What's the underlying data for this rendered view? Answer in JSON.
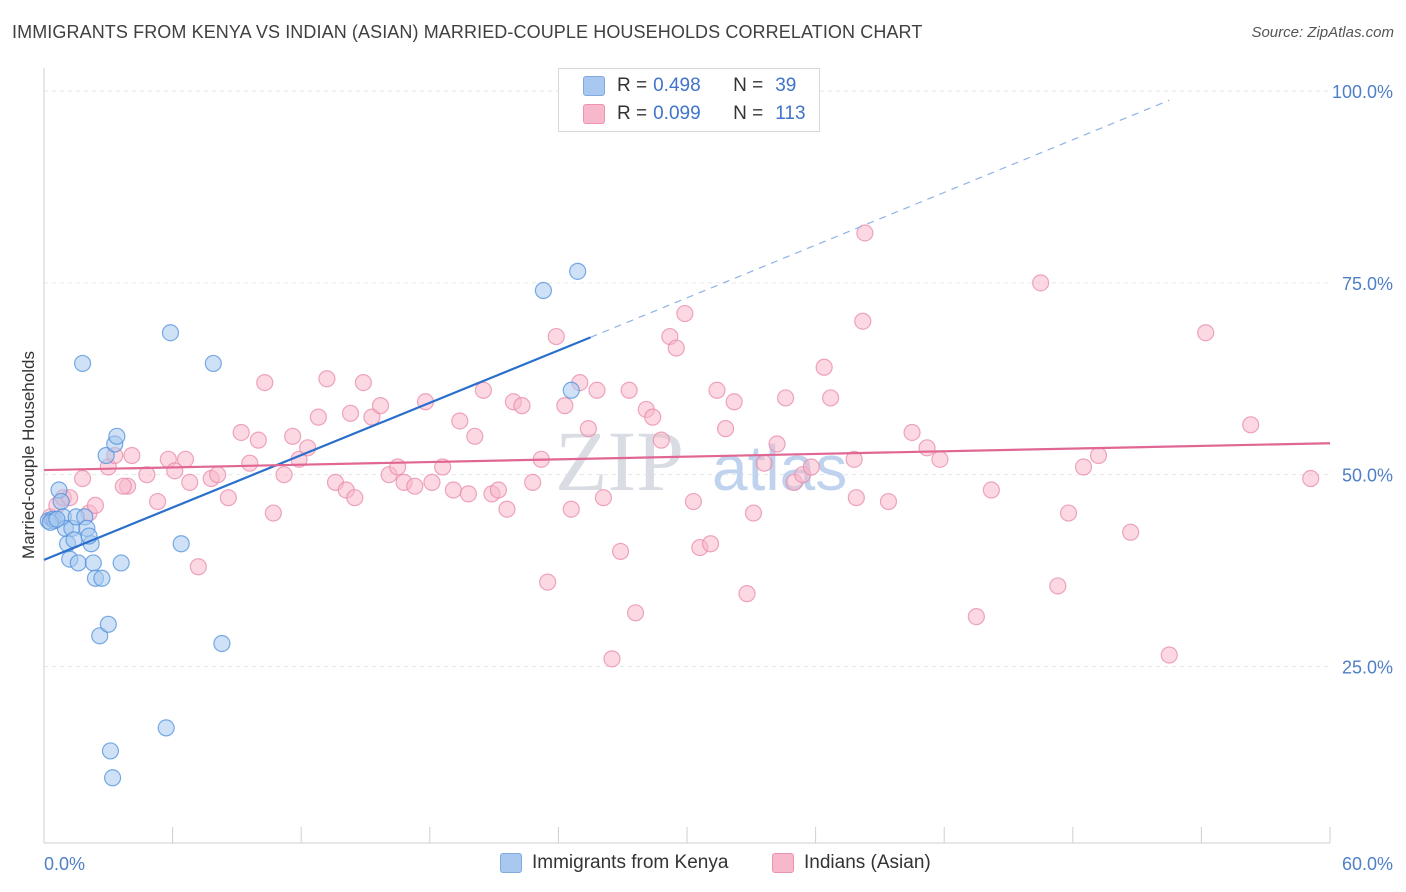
{
  "title": "IMMIGRANTS FROM KENYA VS INDIAN (ASIAN) MARRIED-COUPLE HOUSEHOLDS CORRELATION CHART",
  "source": "Source: ZipAtlas.com",
  "watermark": {
    "zip": "ZIP",
    "atlas": "atlas"
  },
  "legend": {
    "r_label": "R =",
    "n_label": "N =",
    "rows": [
      {
        "r": "0.498",
        "n": "39",
        "color": "#a8c8ef"
      },
      {
        "r": "0.099",
        "n": "113",
        "color": "#f7b8cb"
      }
    ]
  },
  "bottom_legend": [
    {
      "label": "Immigrants from Kenya",
      "color": "#a8c8ef"
    },
    {
      "label": "Indians (Asian)",
      "color": "#f7b8cb"
    }
  ],
  "chart_data": {
    "type": "scatter",
    "title": "IMMIGRANTS FROM KENYA VS INDIAN (ASIAN) MARRIED-COUPLE HOUSEHOLDS CORRELATION CHART",
    "xlabel": "",
    "ylabel": "Married-couple Households",
    "xlim": [
      0,
      60
    ],
    "ylim": [
      2,
      103
    ],
    "x_tick_labels": [
      "0.0%",
      "60.0%"
    ],
    "y_ticks": [
      25,
      50,
      75,
      100
    ],
    "y_tick_labels": [
      "25.0%",
      "50.0%",
      "75.0%",
      "100.0%"
    ],
    "grid": true,
    "series": [
      {
        "name": "Immigrants from Kenya",
        "color": "#4f8fdb",
        "fill": "#a8c8ef",
        "trend": {
          "x0": 0,
          "y0": 38.9,
          "x1": 25.5,
          "y1": 67.9,
          "dash_to_x": 52.5,
          "dash_to_y": 98.8,
          "color": "#2b6fcc"
        },
        "points": [
          [
            0.2,
            44.0
          ],
          [
            0.4,
            44.2
          ],
          [
            0.5,
            44.0
          ],
          [
            0.7,
            48.0
          ],
          [
            0.8,
            46.5
          ],
          [
            0.9,
            44.5
          ],
          [
            1.0,
            43.0
          ],
          [
            1.1,
            41.0
          ],
          [
            1.2,
            39.0
          ],
          [
            1.3,
            43.0
          ],
          [
            1.5,
            44.5
          ],
          [
            1.6,
            38.5
          ],
          [
            1.8,
            64.5
          ],
          [
            1.9,
            44.5
          ],
          [
            2.0,
            43.0
          ],
          [
            2.2,
            41.0
          ],
          [
            2.3,
            38.5
          ],
          [
            2.4,
            36.5
          ],
          [
            2.6,
            29.0
          ],
          [
            2.7,
            36.5
          ],
          [
            2.9,
            52.5
          ],
          [
            3.0,
            30.5
          ],
          [
            3.1,
            14.0
          ],
          [
            3.3,
            54.0
          ],
          [
            3.4,
            55.0
          ],
          [
            3.6,
            38.5
          ],
          [
            2.1,
            42.0
          ],
          [
            3.2,
            10.5
          ],
          [
            5.7,
            17.0
          ],
          [
            5.9,
            68.5
          ],
          [
            6.4,
            41.0
          ],
          [
            7.9,
            64.5
          ],
          [
            8.3,
            28.0
          ],
          [
            23.3,
            74.0
          ],
          [
            24.6,
            61.0
          ],
          [
            24.9,
            76.5
          ],
          [
            0.3,
            43.8
          ],
          [
            0.6,
            44.2
          ],
          [
            1.4,
            41.5
          ]
        ]
      },
      {
        "name": "Indians (Asian)",
        "color": "#e889a9",
        "fill": "#f7b8cb",
        "trend": {
          "x0": 0,
          "y0": 50.6,
          "x1": 60,
          "y1": 54.1,
          "color": "#e06693"
        },
        "points": [
          [
            0.3,
            44.5
          ],
          [
            0.6,
            46.0
          ],
          [
            0.9,
            47.0
          ],
          [
            1.8,
            49.5
          ],
          [
            2.1,
            45.0
          ],
          [
            2.4,
            46.0
          ],
          [
            3.0,
            51.0
          ],
          [
            3.3,
            52.5
          ],
          [
            3.9,
            48.5
          ],
          [
            4.1,
            52.5
          ],
          [
            4.8,
            50.0
          ],
          [
            5.3,
            46.5
          ],
          [
            5.8,
            52.0
          ],
          [
            6.1,
            50.5
          ],
          [
            6.6,
            52.0
          ],
          [
            6.8,
            49.0
          ],
          [
            7.2,
            38.0
          ],
          [
            7.8,
            49.5
          ],
          [
            8.1,
            50.0
          ],
          [
            8.6,
            47.0
          ],
          [
            9.2,
            55.5
          ],
          [
            10.0,
            54.5
          ],
          [
            10.3,
            62.0
          ],
          [
            10.7,
            45.0
          ],
          [
            11.2,
            50.0
          ],
          [
            11.6,
            55.0
          ],
          [
            11.9,
            52.0
          ],
          [
            12.3,
            53.5
          ],
          [
            12.8,
            57.5
          ],
          [
            13.2,
            62.5
          ],
          [
            13.6,
            49.0
          ],
          [
            14.1,
            48.0
          ],
          [
            14.5,
            47.0
          ],
          [
            14.9,
            62.0
          ],
          [
            15.3,
            57.5
          ],
          [
            15.7,
            59.0
          ],
          [
            16.1,
            50.0
          ],
          [
            16.5,
            51.0
          ],
          [
            16.8,
            49.0
          ],
          [
            17.3,
            48.5
          ],
          [
            17.8,
            59.5
          ],
          [
            18.1,
            49.0
          ],
          [
            18.6,
            51.0
          ],
          [
            19.1,
            48.0
          ],
          [
            19.4,
            57.0
          ],
          [
            19.8,
            47.5
          ],
          [
            20.1,
            55.0
          ],
          [
            20.5,
            61.0
          ],
          [
            20.9,
            47.5
          ],
          [
            21.2,
            48.0
          ],
          [
            21.6,
            45.5
          ],
          [
            21.9,
            59.5
          ],
          [
            22.3,
            59.0
          ],
          [
            22.8,
            49.0
          ],
          [
            23.2,
            52.0
          ],
          [
            23.5,
            36.0
          ],
          [
            23.9,
            68.0
          ],
          [
            24.3,
            59.0
          ],
          [
            24.6,
            45.5
          ],
          [
            25.0,
            62.0
          ],
          [
            25.4,
            56.0
          ],
          [
            25.8,
            61.0
          ],
          [
            26.1,
            47.0
          ],
          [
            26.5,
            26.0
          ],
          [
            26.9,
            40.0
          ],
          [
            27.3,
            61.0
          ],
          [
            27.6,
            32.0
          ],
          [
            28.1,
            58.5
          ],
          [
            28.4,
            57.5
          ],
          [
            28.8,
            54.5
          ],
          [
            29.2,
            68.0
          ],
          [
            29.5,
            66.5
          ],
          [
            29.9,
            71.0
          ],
          [
            30.3,
            46.5
          ],
          [
            30.6,
            40.5
          ],
          [
            31.1,
            41.0
          ],
          [
            31.4,
            61.0
          ],
          [
            31.8,
            56.0
          ],
          [
            32.2,
            59.5
          ],
          [
            32.8,
            34.5
          ],
          [
            33.1,
            45.0
          ],
          [
            33.6,
            51.5
          ],
          [
            34.2,
            54.0
          ],
          [
            34.6,
            60.0
          ],
          [
            35.0,
            49.0
          ],
          [
            35.4,
            50.0
          ],
          [
            35.8,
            51.0
          ],
          [
            36.4,
            64.0
          ],
          [
            36.7,
            60.0
          ],
          [
            37.8,
            52.0
          ],
          [
            37.9,
            47.0
          ],
          [
            38.2,
            70.0
          ],
          [
            38.3,
            81.5
          ],
          [
            39.4,
            46.5
          ],
          [
            40.5,
            55.5
          ],
          [
            41.2,
            53.5
          ],
          [
            41.8,
            52.0
          ],
          [
            43.5,
            31.5
          ],
          [
            44.2,
            48.0
          ],
          [
            46.5,
            75.0
          ],
          [
            47.3,
            35.5
          ],
          [
            47.8,
            45.0
          ],
          [
            48.5,
            51.0
          ],
          [
            49.2,
            52.5
          ],
          [
            50.7,
            42.5
          ],
          [
            52.5,
            26.5
          ],
          [
            54.2,
            68.5
          ],
          [
            56.3,
            56.5
          ],
          [
            59.1,
            49.5
          ],
          [
            1.2,
            47.0
          ],
          [
            3.7,
            48.5
          ],
          [
            9.6,
            51.5
          ],
          [
            14.3,
            58.0
          ]
        ]
      }
    ]
  }
}
